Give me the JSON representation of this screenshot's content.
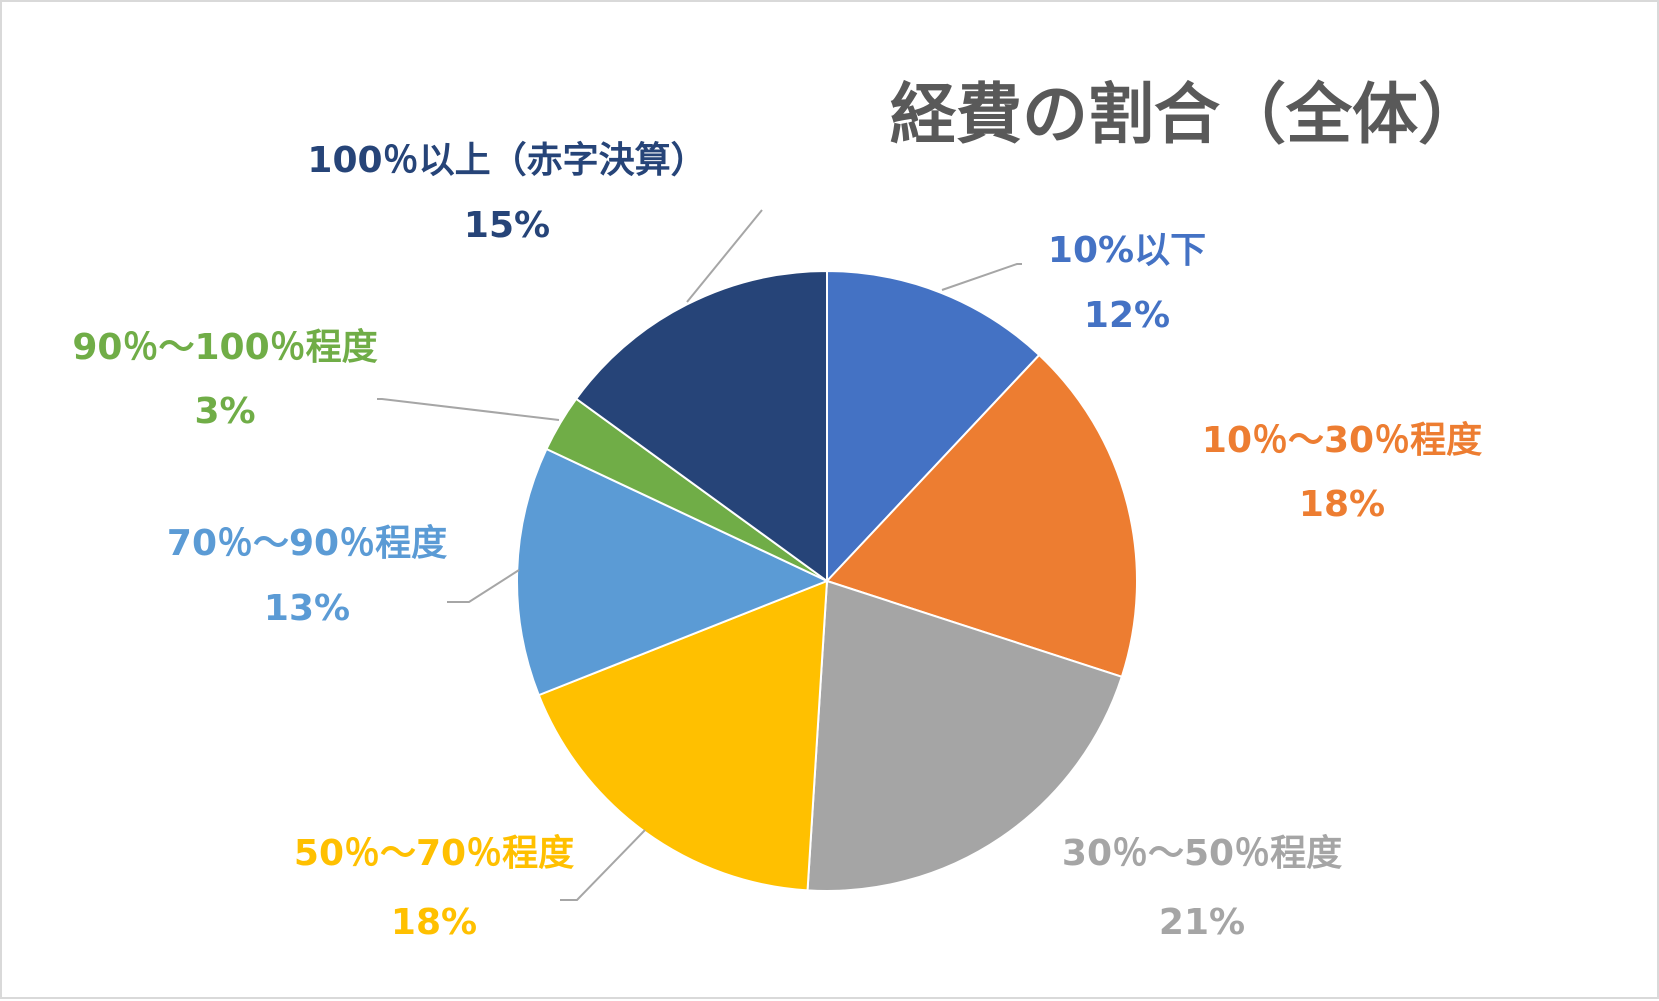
{
  "chart_data": {
    "type": "pie",
    "title": "経費の割合（全体）",
    "start_angle_deg": 0,
    "direction": "clockwise",
    "slices": [
      {
        "label": "10%以下",
        "value": 12,
        "value_label": "12%",
        "color": "#4472C4"
      },
      {
        "label": "10％～30％程度",
        "value": 18,
        "value_label": "18%",
        "color": "#ED7D31"
      },
      {
        "label": "30％～50％程度",
        "value": 21,
        "value_label": "21%",
        "color": "#A5A5A5"
      },
      {
        "label": "50％～70％程度",
        "value": 18,
        "value_label": "18%",
        "color": "#FFC000"
      },
      {
        "label": "70％～90％程度",
        "value": 13,
        "value_label": "13%",
        "color": "#5B9BD5"
      },
      {
        "label": "90％～100％程度",
        "value": 3,
        "value_label": "3%",
        "color": "#70AD47"
      },
      {
        "label": "100％以上（赤字決算）",
        "value": 15,
        "value_label": "15%",
        "color": "#264478"
      }
    ],
    "leader_line_color": "#A6A6A6"
  }
}
